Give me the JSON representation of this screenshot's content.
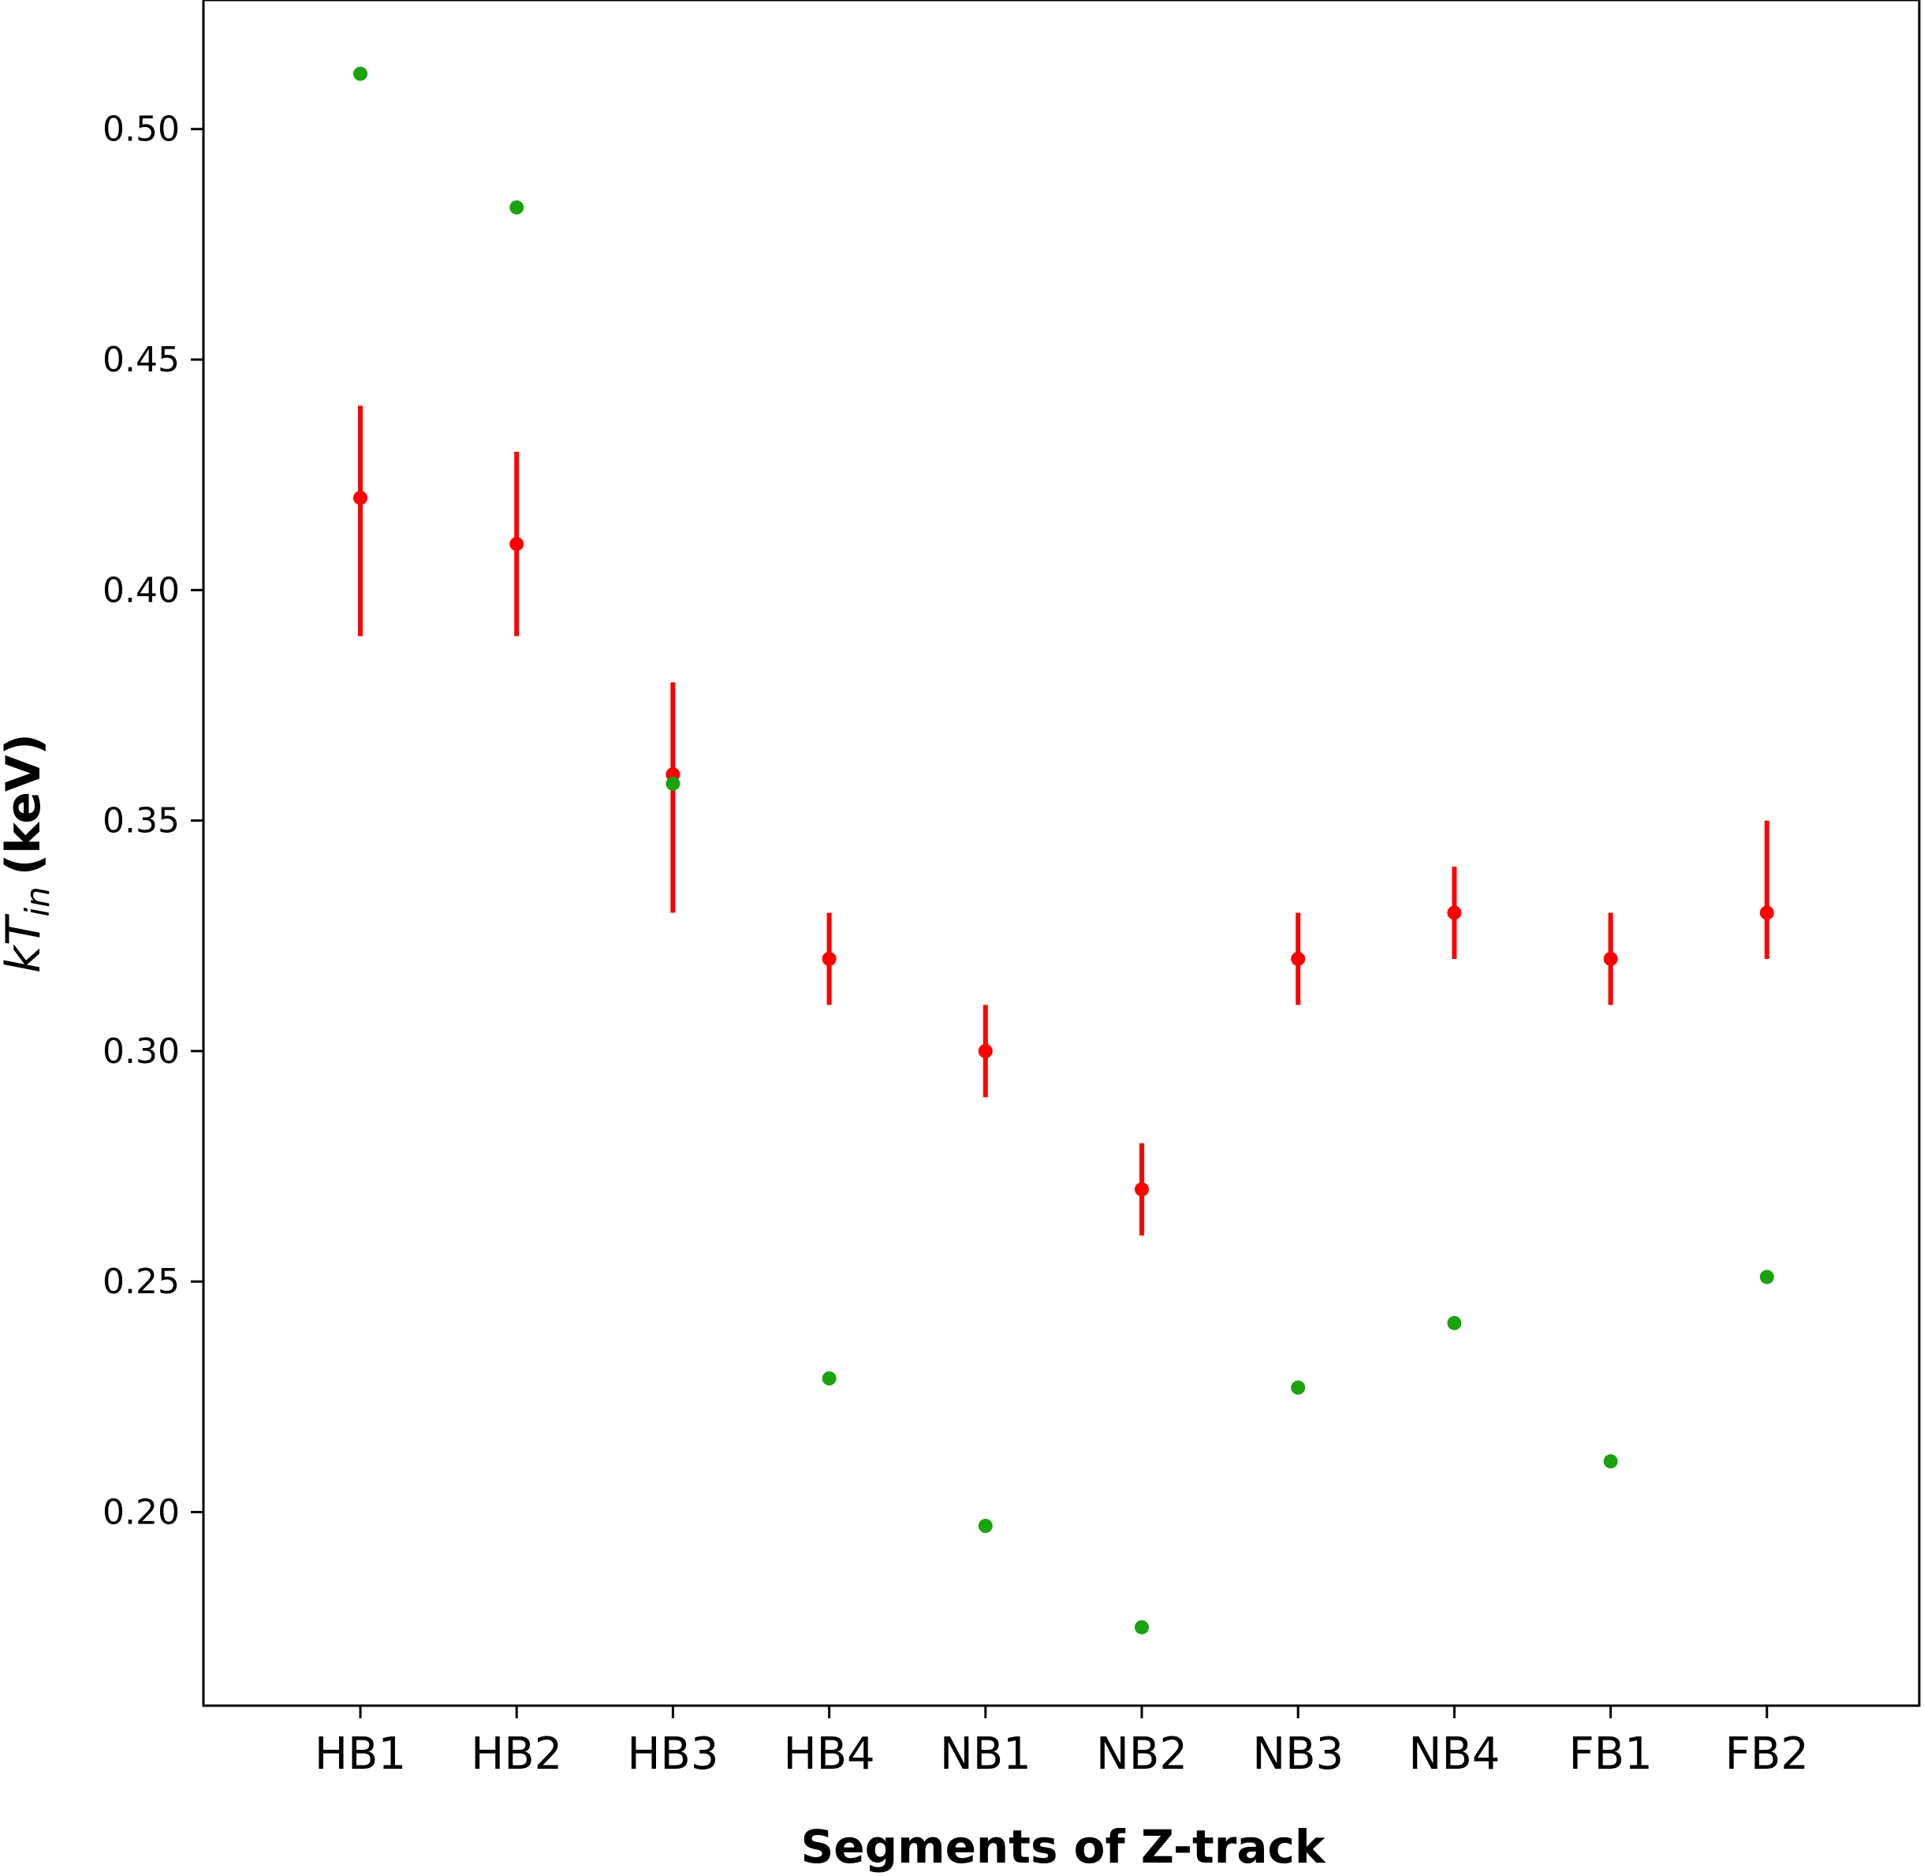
{
  "chart_data": {
    "type": "scatter",
    "title": "",
    "xlabel": "Segments of Z-track",
    "ylabel": {
      "variable": "kT",
      "subscript": "in",
      "unit": "(keV)"
    },
    "categories": [
      "HB1",
      "HB2",
      "HB3",
      "HB4",
      "NB1",
      "NB2",
      "NB3",
      "NB4",
      "FB1",
      "FB2"
    ],
    "ylim": [
      0.158,
      0.528
    ],
    "yticks": [
      "0.20",
      "0.25",
      "0.30",
      "0.35",
      "0.40",
      "0.45",
      "0.50"
    ],
    "grid": false,
    "legend": "none",
    "series": [
      {
        "color": "#ff0000",
        "errorbars": true,
        "values": [
          0.42,
          0.41,
          0.36,
          0.32,
          0.3,
          0.27,
          0.32,
          0.33,
          0.32,
          0.33
        ],
        "err_low": [
          0.39,
          0.39,
          0.33,
          0.31,
          0.29,
          0.26,
          0.31,
          0.32,
          0.31,
          0.32
        ],
        "err_high": [
          0.44,
          0.43,
          0.38,
          0.33,
          0.31,
          0.28,
          0.33,
          0.34,
          0.33,
          0.35
        ]
      },
      {
        "color": "#1aa30f",
        "errorbars": false,
        "values": [
          0.512,
          0.483,
          0.358,
          0.229,
          0.197,
          0.175,
          0.227,
          0.241,
          0.211,
          0.251
        ]
      }
    ]
  }
}
